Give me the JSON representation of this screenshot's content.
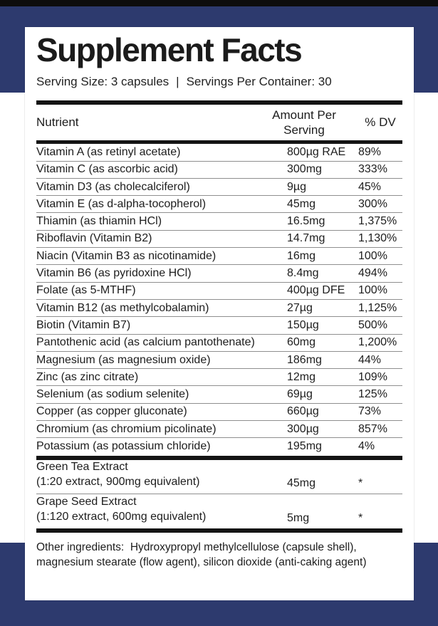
{
  "colors": {
    "accent_navy": "#2d3a6e",
    "rule_black": "#141414",
    "divider_gray": "#8f8f8f",
    "text_black": "#1d1d1d"
  },
  "label": {
    "title": "Supplement Facts",
    "serving_size": "Serving Size: 3 capsules",
    "pipe": "|",
    "servings_per_container": "Servings Per Container: 30"
  },
  "table": {
    "headers": {
      "nutrient": "Nutrient",
      "amount": "Amount Per Serving",
      "dv": "% DV"
    },
    "rows": [
      {
        "nutrient": "Vitamin A (as retinyl acetate)",
        "amount": "800µg RAE",
        "dv": "89%"
      },
      {
        "nutrient": "Vitamin C (as ascorbic acid)",
        "amount": "300mg",
        "dv": "333%"
      },
      {
        "nutrient": "Vitamin D3 (as cholecalciferol)",
        "amount": "9µg",
        "dv": "45%"
      },
      {
        "nutrient": "Vitamin E (as d-alpha-tocopherol)",
        "amount": "45mg",
        "dv": "300%"
      },
      {
        "nutrient": "Thiamin (as thiamin HCl)",
        "amount": "16.5mg",
        "dv": "1,375%"
      },
      {
        "nutrient": "Riboflavin (Vitamin B2)",
        "amount": "14.7mg",
        "dv": "1,130%"
      },
      {
        "nutrient": "Niacin (Vitamin B3 as nicotinamide)",
        "amount": "16mg",
        "dv": "100%"
      },
      {
        "nutrient": "Vitamin B6 (as pyridoxine HCl)",
        "amount": "8.4mg",
        "dv": "494%"
      },
      {
        "nutrient": "Folate (as 5-MTHF)",
        "amount": "400µg DFE",
        "dv": "100%"
      },
      {
        "nutrient": "Vitamin B12 (as methylcobalamin)",
        "amount": "27µg",
        "dv": "1,125%"
      },
      {
        "nutrient": "Biotin (Vitamin B7)",
        "amount": "150µg",
        "dv": "500%"
      },
      {
        "nutrient": "Pantothenic acid (as calcium pantothenate)",
        "amount": "60mg",
        "dv": "1,200%"
      },
      {
        "nutrient": "Magnesium (as magnesium oxide)",
        "amount": "186mg",
        "dv": "44%"
      },
      {
        "nutrient": "Zinc (as zinc citrate)",
        "amount": "12mg",
        "dv": "109%"
      },
      {
        "nutrient": "Selenium (as sodium selenite)",
        "amount": "69µg",
        "dv": "125%"
      },
      {
        "nutrient": "Copper (as copper gluconate)",
        "amount": "660µg",
        "dv": "73%"
      },
      {
        "nutrient": "Chromium (as chromium picolinate)",
        "amount": "300µg",
        "dv": "857%"
      },
      {
        "nutrient": "Potassium (as potassium chloride)",
        "amount": "195mg",
        "dv": "4%"
      }
    ],
    "extracts": [
      {
        "name": "Green Tea Extract",
        "detail": "(1:20 extract, 900mg equivalent)",
        "amount": "45mg",
        "dv": "*"
      },
      {
        "name": "Grape Seed Extract",
        "detail": "(1:120 extract, 600mg equivalent)",
        "amount": "5mg",
        "dv": "*"
      }
    ]
  },
  "footer": {
    "other_ingredients": "Other ingredients:  Hydroxypropyl methylcellulose (capsule shell), magnesium stearate (flow agent), silicon dioxide (anti-caking agent)"
  }
}
